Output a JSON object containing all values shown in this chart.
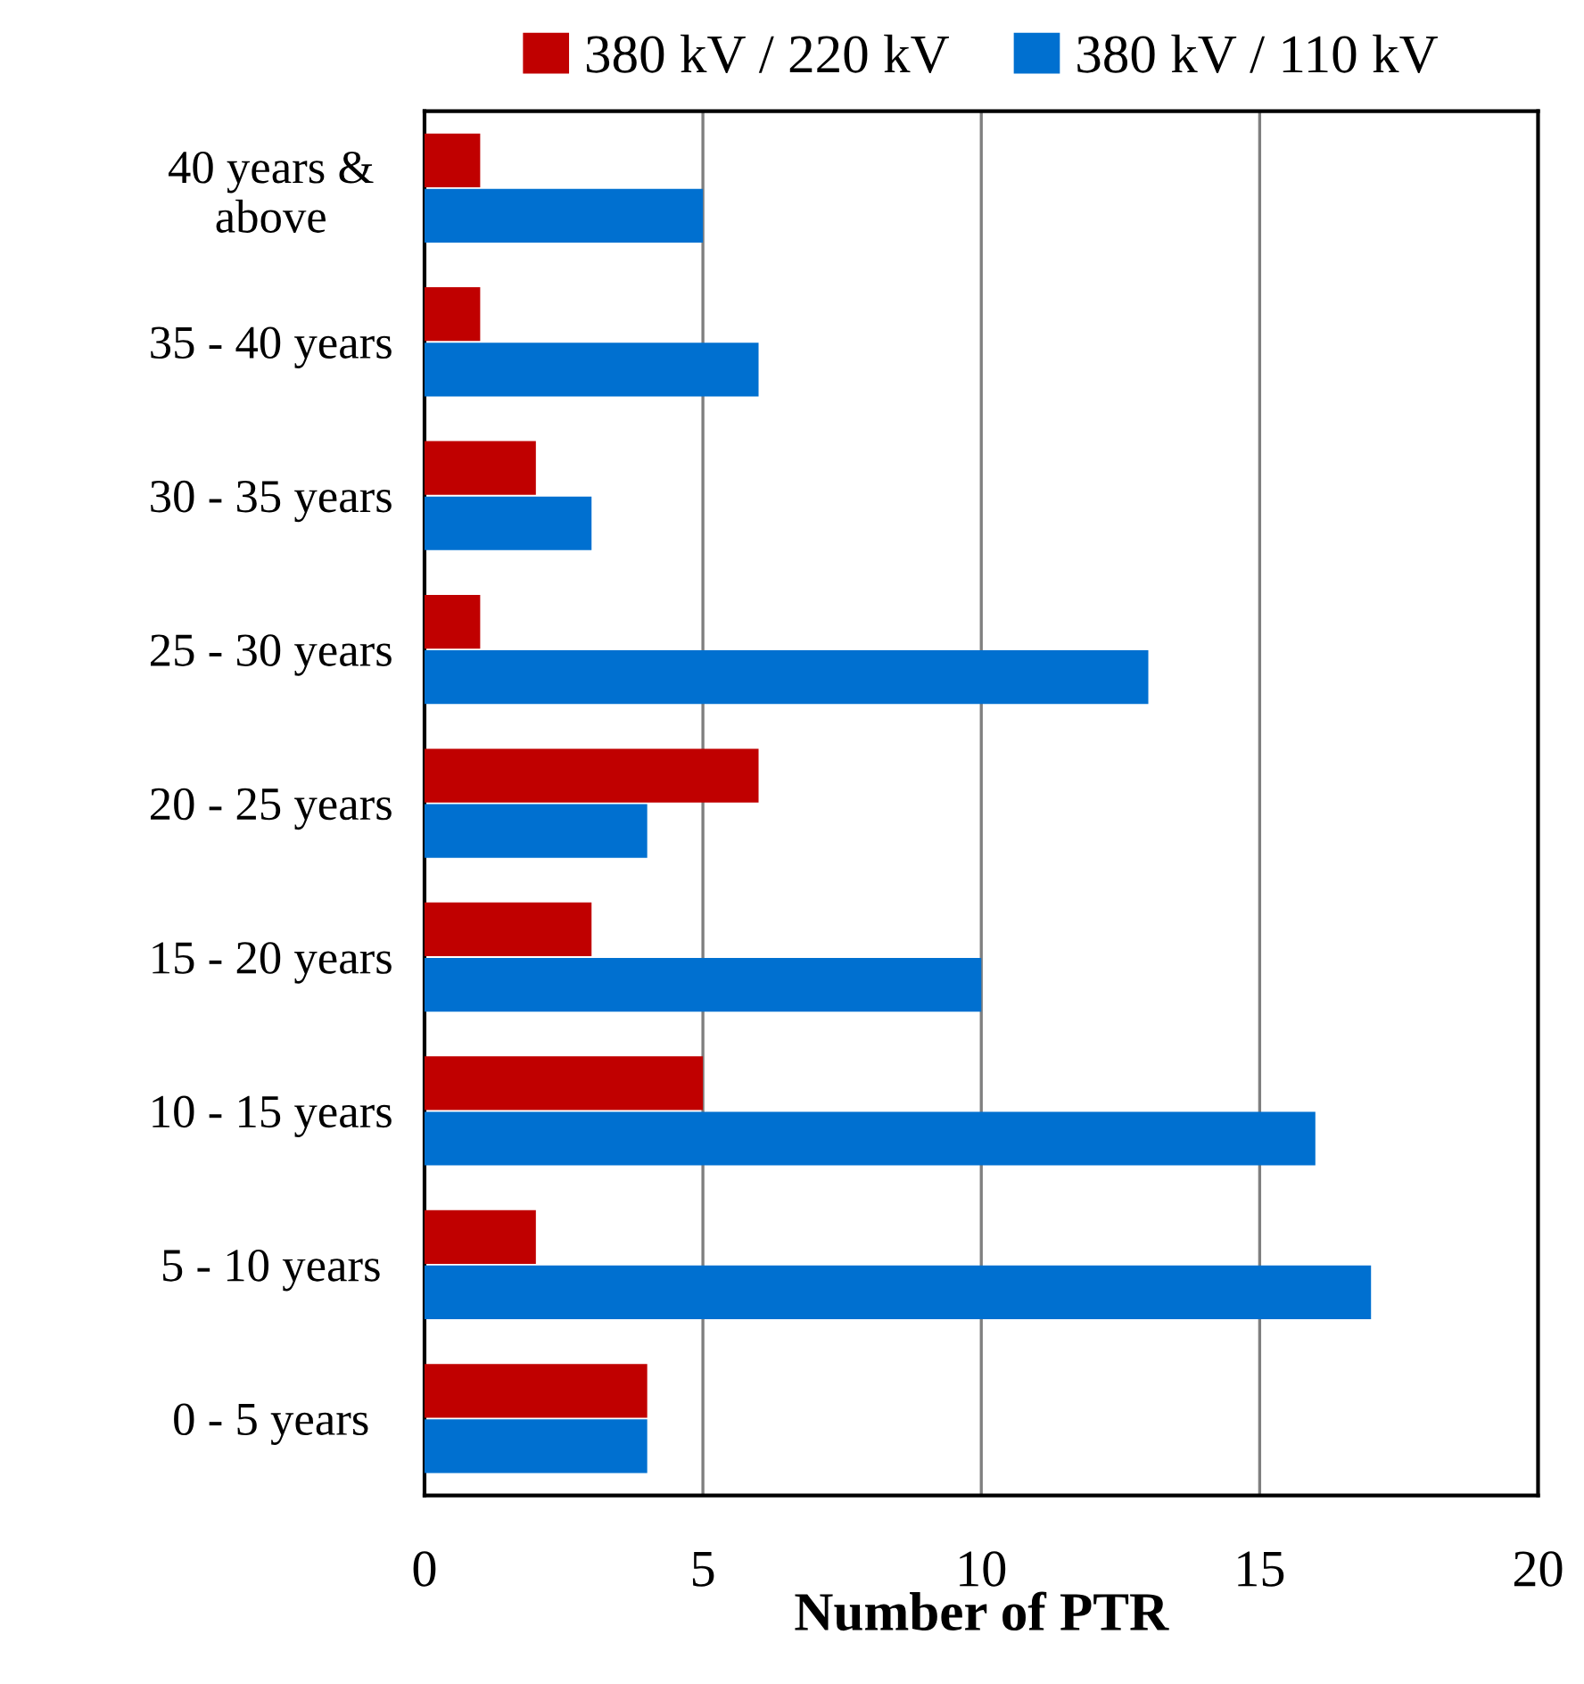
{
  "chart_data": {
    "type": "bar",
    "orientation": "horizontal",
    "xlabel": "Number of PTR",
    "categories": [
      "40 years &\nabove",
      "35 - 40 years",
      "30 - 35 years",
      "25 - 30 years",
      "20 - 25 years",
      "15 - 20 years",
      "10 - 15 years",
      "5 - 10 years",
      "0 - 5 years"
    ],
    "series": [
      {
        "name": "380 kV / 220 kV",
        "color": "#c00000",
        "values": [
          1,
          1,
          2,
          1,
          6,
          3,
          5,
          2,
          4
        ]
      },
      {
        "name": "380 kV / 110 kV",
        "color": "#0070d0",
        "values": [
          5,
          6,
          3,
          13,
          4,
          10,
          16,
          17,
          4
        ]
      }
    ],
    "xlim": [
      0,
      20
    ],
    "xticks": [
      0,
      5,
      10,
      15,
      20
    ],
    "grid": "x",
    "legend": "top"
  }
}
